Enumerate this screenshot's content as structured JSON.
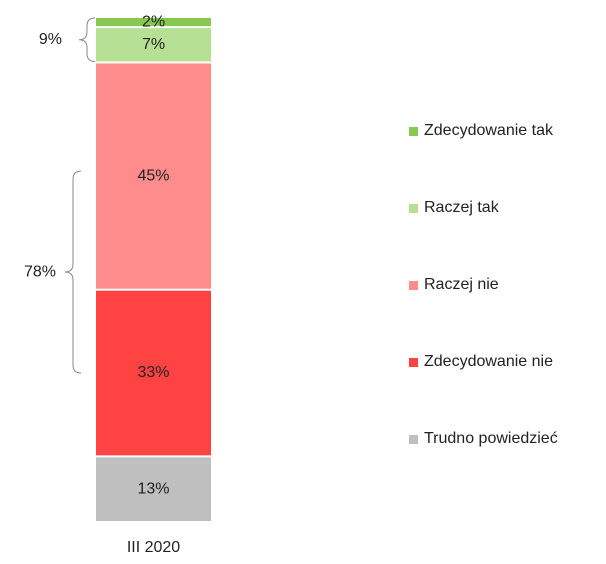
{
  "chart_data": {
    "type": "stacked_bar",
    "categories": [
      "III 2020"
    ],
    "series": [
      {
        "name": "Zdecydowanie tak",
        "color": "#86c850",
        "values": [
          2
        ],
        "value_labels": [
          "2%"
        ]
      },
      {
        "name": "Raczej tak",
        "color": "#b6e194",
        "values": [
          7
        ],
        "value_labels": [
          "7%"
        ]
      },
      {
        "name": "Raczej nie",
        "color": "#ff8c8c",
        "values": [
          45
        ],
        "value_labels": [
          "45%"
        ]
      },
      {
        "name": "Zdecydowanie nie",
        "color": "#ff4343",
        "values": [
          33
        ],
        "value_labels": [
          "33%"
        ]
      },
      {
        "name": "Trudno powiedzieć",
        "color": "#bfbfbf",
        "values": [
          13
        ],
        "value_labels": [
          "13%"
        ]
      }
    ],
    "annotations": [
      "9%",
      "78%"
    ]
  }
}
